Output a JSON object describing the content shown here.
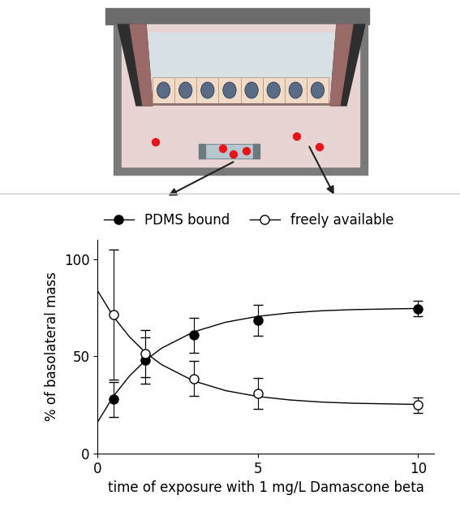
{
  "chart_data": {
    "type": "line",
    "x_label": "time of exposure with 1 mg/L Damascone beta",
    "y_label": "% of basolateral mass",
    "x": [
      0.5,
      1.5,
      3,
      5,
      10
    ],
    "fit_x": [
      0,
      0.5,
      1,
      1.5,
      2,
      3,
      4,
      5,
      6,
      7,
      8,
      10
    ],
    "series": [
      {
        "name": "PDMS bound",
        "color": "#000000",
        "marker": "filled_circle",
        "line_style": "solid",
        "values": [
          28,
          48,
          61,
          68.5,
          74.5
        ],
        "errors": [
          9,
          12,
          9,
          8,
          4
        ],
        "fit": [
          16,
          29.5,
          39.9,
          48.0,
          54.2,
          62.6,
          67.6,
          70.6,
          72.4,
          73.5,
          74.1,
          74.7
        ]
      },
      {
        "name": "freely available",
        "color": "#000000",
        "marker": "open_circle",
        "line_style": "solid",
        "values": [
          71.5,
          51.5,
          38.5,
          31,
          25
        ],
        "errors": [
          33.5,
          12,
          9,
          8,
          4
        ],
        "fit": [
          84,
          70.5,
          60.1,
          52.0,
          45.8,
          37.4,
          32.4,
          29.4,
          27.6,
          26.5,
          25.9,
          25.3
        ]
      }
    ],
    "xlim": [
      0,
      10.5
    ],
    "xticks": [
      0,
      5,
      10
    ],
    "ylim": [
      0,
      110
    ],
    "yticks": [
      0,
      50,
      100
    ],
    "legend": "top",
    "grid": false
  }
}
